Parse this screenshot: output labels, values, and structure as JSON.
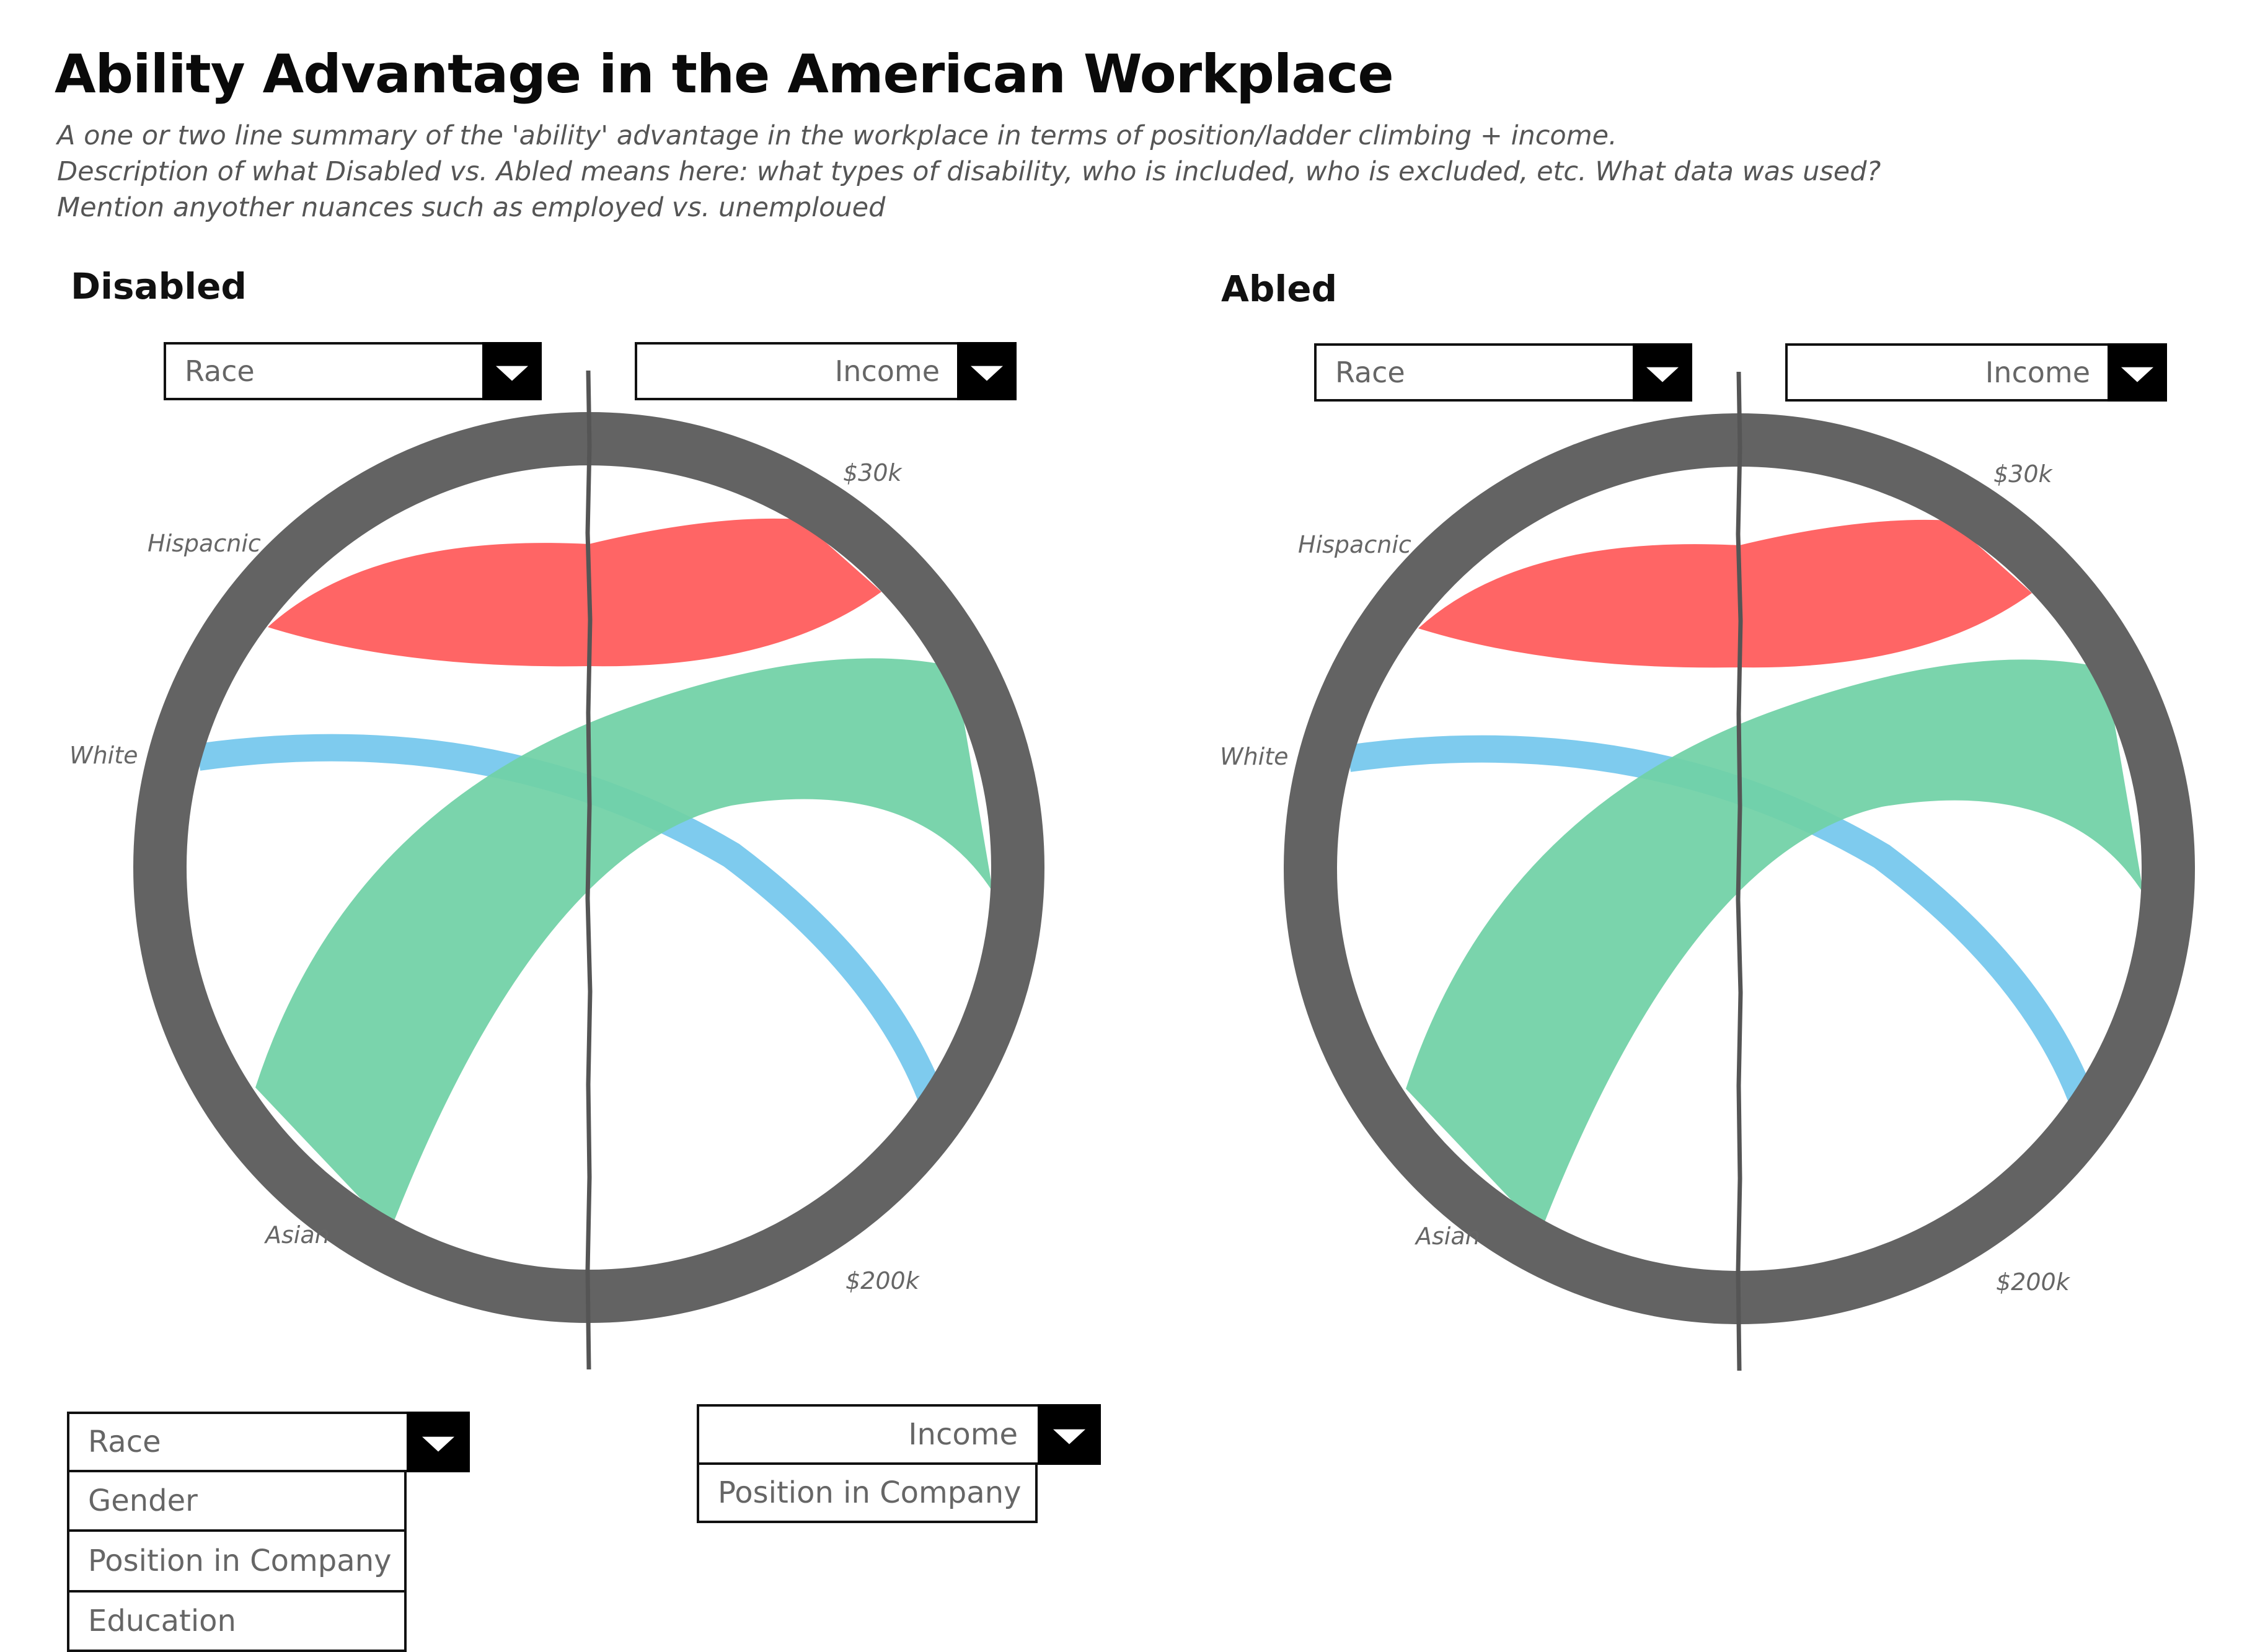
{
  "header": {
    "title": "Ability Advantage in the American Workplace",
    "subtitle_lines": [
      "A one or two line summary of the 'ability' advantage in the workplace in terms of position/ladder climbing + income.",
      "Description of what Disabled vs. Abled means here: what types of disability, who is included, who is excluded, etc. What data was used?",
      "Mention anyother nuances such as employed vs. unemploued"
    ]
  },
  "panels": [
    {
      "title": "Disabled",
      "left_dropdown": "Race",
      "right_dropdown": "Income",
      "labels": {
        "hispanic": "Hispacnic",
        "white": "White",
        "asian": "Asian",
        "low_income": "$30k",
        "high_income": "$200k"
      }
    },
    {
      "title": "Abled",
      "left_dropdown": "Race",
      "right_dropdown": "Income",
      "labels": {
        "hispanic": "Hispacnic",
        "white": "White",
        "asian": "Asian",
        "low_income": "$30k",
        "high_income": "$200k"
      }
    }
  ],
  "expanded_dropdowns": {
    "left": {
      "selected": "Race",
      "options": [
        "Gender",
        "Position in Company",
        "Education"
      ]
    },
    "right": {
      "selected": "Income",
      "options": [
        "Position in Company"
      ]
    }
  },
  "colors": {
    "ring": "#636363",
    "hispanic": "#ff6565",
    "white": "#7ecbee",
    "asian": "#70d1a6",
    "axis": "#555555"
  }
}
